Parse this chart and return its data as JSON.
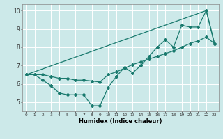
{
  "xlabel": "Humidex (Indice chaleur)",
  "xlim": [
    -0.5,
    23.5
  ],
  "ylim": [
    4.5,
    10.35
  ],
  "xticks": [
    0,
    1,
    2,
    3,
    4,
    5,
    6,
    7,
    8,
    9,
    10,
    11,
    12,
    13,
    14,
    15,
    16,
    17,
    18,
    19,
    20,
    21,
    22,
    23
  ],
  "yticks": [
    5,
    6,
    7,
    8,
    9,
    10
  ],
  "background_color": "#cce9e9",
  "grid_color": "#ffffff",
  "line_color": "#1a7a6e",
  "line1_x": [
    0,
    1,
    2,
    3,
    4,
    5,
    6,
    7,
    8,
    9,
    10,
    11,
    12,
    13,
    14,
    15,
    16,
    17,
    18,
    19,
    20,
    21,
    22,
    23
  ],
  "line1_y": [
    6.5,
    6.5,
    6.2,
    5.9,
    5.5,
    5.4,
    5.4,
    5.4,
    4.8,
    4.8,
    5.8,
    6.4,
    6.9,
    6.6,
    7.0,
    7.5,
    8.0,
    8.4,
    8.0,
    9.2,
    9.1,
    9.1,
    10.0,
    8.2
  ],
  "line2_x": [
    0,
    1,
    2,
    3,
    4,
    5,
    6,
    7,
    8,
    9,
    10,
    11,
    12,
    13,
    14,
    15,
    16,
    17,
    18,
    19,
    20,
    21,
    22,
    23
  ],
  "line2_y": [
    6.5,
    6.5,
    6.5,
    6.4,
    6.3,
    6.3,
    6.2,
    6.2,
    6.15,
    6.1,
    6.5,
    6.65,
    6.85,
    7.05,
    7.2,
    7.35,
    7.5,
    7.65,
    7.8,
    8.0,
    8.2,
    8.35,
    8.55,
    8.2
  ],
  "line3_x": [
    0,
    22,
    23
  ],
  "line3_y": [
    6.5,
    10.0,
    8.2
  ]
}
